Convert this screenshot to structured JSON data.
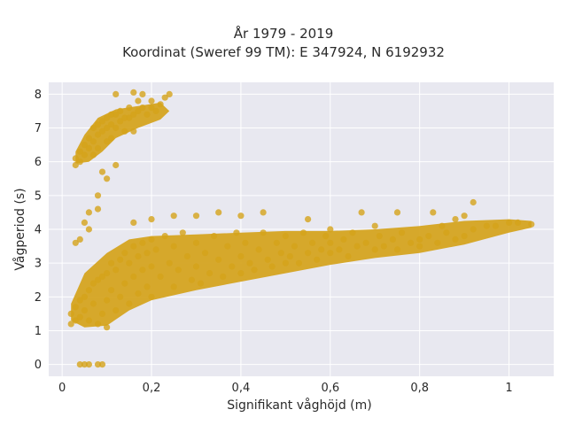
{
  "title_line1": "År 1979 - 2019",
  "title_line2": "Koordinat (Sweref 99 TM): E 347924, N 6192932",
  "chart_data": {
    "type": "scatter",
    "title": "År 1979 - 2019\nKoordinat (Sweref 99 TM): E 347924, N 6192932",
    "xlabel": "Signifikant våghöjd (m)",
    "ylabel": "Vågperiod (s)",
    "xlim": [
      -0.03,
      1.1
    ],
    "ylim": [
      -0.35,
      8.35
    ],
    "grid": true,
    "x_ticks": [
      0,
      0.2,
      0.4,
      0.6,
      0.8,
      1
    ],
    "x_tick_labels": [
      "0",
      "0,2",
      "0,4",
      "0,6",
      "0,8",
      "1"
    ],
    "y_ticks": [
      0,
      1,
      2,
      3,
      4,
      5,
      6,
      7,
      8
    ],
    "y_tick_labels": [
      "0",
      "1",
      "2",
      "3",
      "4",
      "5",
      "6",
      "7",
      "8"
    ],
    "colors": {
      "marker": "#d4a21a",
      "plot_bg": "#e8e8f0",
      "grid": "#ffffff"
    },
    "points": [
      [
        0.04,
        0
      ],
      [
        0.05,
        0
      ],
      [
        0.06,
        0
      ],
      [
        0.08,
        0
      ],
      [
        0.09,
        0
      ],
      [
        0.02,
        1.2
      ],
      [
        0.02,
        1.5
      ],
      [
        0.03,
        1.7
      ],
      [
        0.03,
        1.3
      ],
      [
        0.04,
        1.9
      ],
      [
        0.04,
        1.4
      ],
      [
        0.05,
        2.0
      ],
      [
        0.05,
        1.6
      ],
      [
        0.06,
        2.2
      ],
      [
        0.06,
        1.3
      ],
      [
        0.07,
        2.4
      ],
      [
        0.07,
        1.8
      ],
      [
        0.08,
        2.5
      ],
      [
        0.08,
        1.2
      ],
      [
        0.09,
        2.6
      ],
      [
        0.09,
        1.5
      ],
      [
        0.1,
        2.7
      ],
      [
        0.1,
        1.9
      ],
      [
        0.1,
        1.1
      ],
      [
        0.11,
        3.0
      ],
      [
        0.11,
        2.2
      ],
      [
        0.12,
        2.8
      ],
      [
        0.12,
        1.6
      ],
      [
        0.13,
        3.1
      ],
      [
        0.13,
        2.0
      ],
      [
        0.14,
        3.3
      ],
      [
        0.14,
        2.4
      ],
      [
        0.15,
        3.0
      ],
      [
        0.15,
        1.8
      ],
      [
        0.16,
        3.5
      ],
      [
        0.16,
        2.6
      ],
      [
        0.17,
        3.2
      ],
      [
        0.17,
        2.1
      ],
      [
        0.18,
        3.6
      ],
      [
        0.18,
        2.8
      ],
      [
        0.19,
        3.3
      ],
      [
        0.19,
        2.3
      ],
      [
        0.2,
        3.7
      ],
      [
        0.2,
        2.9
      ],
      [
        0.2,
        2.0
      ],
      [
        0.21,
        3.4
      ],
      [
        0.22,
        2.6
      ],
      [
        0.23,
        3.8
      ],
      [
        0.24,
        3.0
      ],
      [
        0.25,
        2.3
      ],
      [
        0.25,
        3.5
      ],
      [
        0.26,
        2.8
      ],
      [
        0.27,
        3.9
      ],
      [
        0.28,
        3.2
      ],
      [
        0.29,
        2.5
      ],
      [
        0.3,
        3.6
      ],
      [
        0.3,
        2.9
      ],
      [
        0.31,
        2.4
      ],
      [
        0.32,
        3.3
      ],
      [
        0.33,
        2.7
      ],
      [
        0.34,
        3.8
      ],
      [
        0.35,
        3.1
      ],
      [
        0.36,
        2.6
      ],
      [
        0.37,
        3.5
      ],
      [
        0.38,
        2.9
      ],
      [
        0.39,
        3.9
      ],
      [
        0.4,
        3.2
      ],
      [
        0.4,
        2.7
      ],
      [
        0.41,
        3.6
      ],
      [
        0.42,
        3.0
      ],
      [
        0.43,
        2.8
      ],
      [
        0.44,
        3.4
      ],
      [
        0.45,
        3.9
      ],
      [
        0.46,
        3.1
      ],
      [
        0.47,
        2.9
      ],
      [
        0.48,
        3.6
      ],
      [
        0.49,
        3.3
      ],
      [
        0.5,
        3.0
      ],
      [
        0.5,
        3.8
      ],
      [
        0.51,
        3.2
      ],
      [
        0.52,
        3.5
      ],
      [
        0.53,
        3.0
      ],
      [
        0.54,
        3.9
      ],
      [
        0.55,
        3.3
      ],
      [
        0.56,
        3.6
      ],
      [
        0.57,
        3.1
      ],
      [
        0.58,
        3.4
      ],
      [
        0.59,
        3.8
      ],
      [
        0.6,
        3.3
      ],
      [
        0.6,
        3.6
      ],
      [
        0.62,
        3.4
      ],
      [
        0.63,
        3.7
      ],
      [
        0.64,
        3.2
      ],
      [
        0.65,
        3.9
      ],
      [
        0.66,
        3.5
      ],
      [
        0.68,
        3.6
      ],
      [
        0.7,
        3.4
      ],
      [
        0.71,
        3.8
      ],
      [
        0.72,
        3.5
      ],
      [
        0.74,
        3.7
      ],
      [
        0.75,
        3.4
      ],
      [
        0.76,
        3.9
      ],
      [
        0.78,
        3.6
      ],
      [
        0.8,
        3.7
      ],
      [
        0.8,
        3.5
      ],
      [
        0.82,
        3.8
      ],
      [
        0.84,
        3.6
      ],
      [
        0.86,
        3.9
      ],
      [
        0.88,
        3.7
      ],
      [
        0.9,
        3.8
      ],
      [
        0.92,
        4.0
      ],
      [
        0.95,
        4.1
      ],
      [
        0.97,
        4.1
      ],
      [
        1.0,
        4.2
      ],
      [
        1.02,
        4.2
      ],
      [
        1.05,
        4.15
      ],
      [
        0.16,
        4.2
      ],
      [
        0.2,
        4.3
      ],
      [
        0.25,
        4.4
      ],
      [
        0.3,
        4.4
      ],
      [
        0.35,
        4.5
      ],
      [
        0.4,
        4.4
      ],
      [
        0.45,
        4.5
      ],
      [
        0.55,
        4.3
      ],
      [
        0.67,
        4.5
      ],
      [
        0.75,
        4.5
      ],
      [
        0.83,
        4.5
      ],
      [
        0.9,
        4.4
      ],
      [
        0.92,
        4.8
      ],
      [
        0.88,
        4.3
      ],
      [
        0.6,
        4.0
      ],
      [
        0.7,
        4.1
      ],
      [
        0.85,
        4.1
      ],
      [
        0.03,
        3.6
      ],
      [
        0.04,
        3.7
      ],
      [
        0.05,
        4.2
      ],
      [
        0.06,
        4.5
      ],
      [
        0.06,
        4.0
      ],
      [
        0.08,
        5.0
      ],
      [
        0.08,
        4.6
      ],
      [
        0.09,
        5.7
      ],
      [
        0.1,
        5.5
      ],
      [
        0.03,
        5.9
      ],
      [
        0.03,
        6.1
      ],
      [
        0.04,
        6.3
      ],
      [
        0.04,
        6.0
      ],
      [
        0.05,
        6.5
      ],
      [
        0.05,
        6.2
      ],
      [
        0.06,
        6.7
      ],
      [
        0.06,
        6.4
      ],
      [
        0.07,
        7.0
      ],
      [
        0.07,
        6.6
      ],
      [
        0.07,
        6.2
      ],
      [
        0.08,
        7.1
      ],
      [
        0.08,
        6.8
      ],
      [
        0.08,
        6.4
      ],
      [
        0.09,
        7.2
      ],
      [
        0.09,
        6.9
      ],
      [
        0.1,
        7.3
      ],
      [
        0.1,
        7.0
      ],
      [
        0.1,
        6.6
      ],
      [
        0.11,
        7.4
      ],
      [
        0.11,
        7.1
      ],
      [
        0.11,
        6.7
      ],
      [
        0.12,
        7.4
      ],
      [
        0.12,
        7.0
      ],
      [
        0.12,
        5.9
      ],
      [
        0.13,
        7.5
      ],
      [
        0.13,
        7.2
      ],
      [
        0.14,
        7.3
      ],
      [
        0.14,
        6.9
      ],
      [
        0.15,
        7.6
      ],
      [
        0.15,
        7.3
      ],
      [
        0.16,
        7.4
      ],
      [
        0.16,
        6.9
      ],
      [
        0.17,
        7.5
      ],
      [
        0.17,
        7.8
      ],
      [
        0.18,
        7.6
      ],
      [
        0.18,
        8.0
      ],
      [
        0.19,
        7.4
      ],
      [
        0.2,
        7.6
      ],
      [
        0.2,
        7.8
      ],
      [
        0.21,
        7.5
      ],
      [
        0.22,
        7.7
      ],
      [
        0.23,
        7.9
      ],
      [
        0.24,
        8.0
      ],
      [
        0.12,
        8.0
      ],
      [
        0.16,
        8.05
      ]
    ]
  }
}
